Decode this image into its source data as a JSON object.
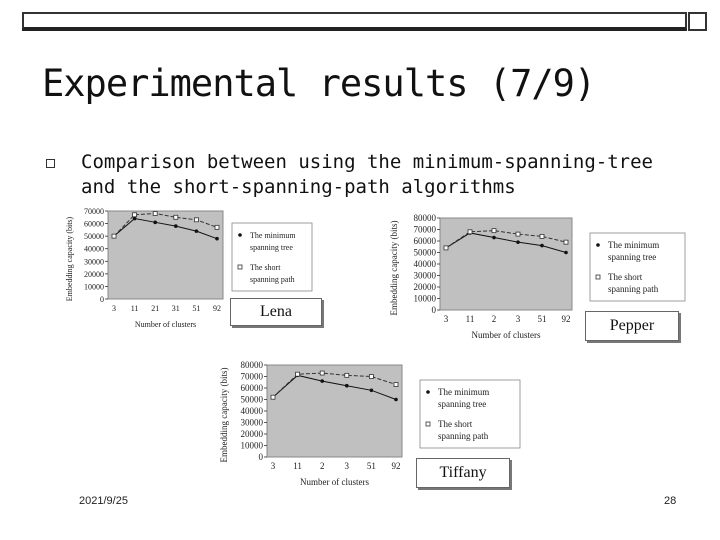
{
  "slide": {
    "title": "Experimental results (7/9)",
    "bullet": "Comparison between using the minimum-spanning-tree and the short-spanning-path algorithms",
    "date": "2021/9/25",
    "page": "28"
  },
  "chart_data": [
    {
      "type": "line",
      "caption": "Lena",
      "xlabel": "Number of clusters",
      "ylabel": "Embedding capacity (bits)",
      "categories": [
        "3",
        "11",
        "21",
        "31",
        "51",
        "92"
      ],
      "yticks": [
        "0",
        "10000",
        "20000",
        "30000",
        "40000",
        "50000",
        "60000",
        "70000"
      ],
      "ylim": [
        0,
        70000
      ],
      "series": [
        {
          "name": "The minimum spanning tree",
          "values": [
            50000,
            64000,
            61000,
            58000,
            54000,
            48000
          ]
        },
        {
          "name": "The short spanning path",
          "values": [
            50000,
            67000,
            68000,
            65000,
            63000,
            57000
          ]
        }
      ]
    },
    {
      "type": "line",
      "caption": "Pepper",
      "xlabel": "Number of clusters",
      "ylabel": "Embedding capacity (bits)",
      "categories": [
        "3",
        "11",
        "2",
        "3",
        "51",
        "92"
      ],
      "yticks": [
        "0",
        "10000",
        "20000",
        "30000",
        "40000",
        "50000",
        "60000",
        "70000",
        "80000"
      ],
      "ylim": [
        0,
        80000
      ],
      "series": [
        {
          "name": "The minimum spanning tree",
          "values": [
            54000,
            67000,
            63000,
            59000,
            56000,
            50000
          ]
        },
        {
          "name": "The short spanning path",
          "values": [
            54000,
            68000,
            69000,
            66000,
            64000,
            59000
          ]
        }
      ]
    },
    {
      "type": "line",
      "caption": "Tiffany",
      "xlabel": "Number of clusters",
      "ylabel": "Embedding capacity (bits)",
      "categories": [
        "3",
        "11",
        "2",
        "3",
        "51",
        "92"
      ],
      "yticks": [
        "0",
        "10000",
        "20000",
        "30000",
        "40000",
        "50000",
        "60000",
        "70000",
        "80000"
      ],
      "ylim": [
        0,
        80000
      ],
      "series": [
        {
          "name": "The minimum spanning tree",
          "values": [
            52000,
            71000,
            66000,
            62000,
            58000,
            50000
          ]
        },
        {
          "name": "The short spanning path",
          "values": [
            52000,
            72000,
            73000,
            71000,
            70000,
            63000
          ]
        }
      ]
    }
  ]
}
